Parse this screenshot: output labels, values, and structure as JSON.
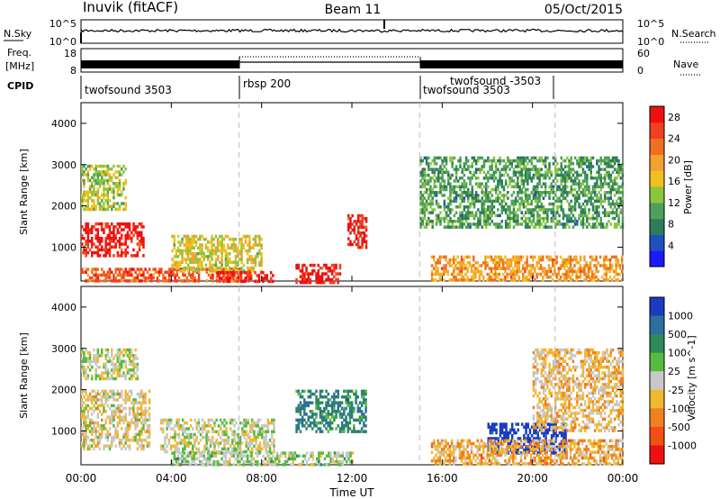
{
  "header": {
    "site": "Inuvik (fitACF)",
    "beam": "Beam 11",
    "date": "05/Oct/2015"
  },
  "left_labels": {
    "nsky": "N.Sky",
    "freq_top": "Freq.",
    "freq_unit": "[MHz]",
    "cpid": "CPID"
  },
  "right_labels": {
    "nsearch": "N.Search",
    "nave": "Nave"
  },
  "noise_axis": {
    "left_ticks": [
      "10^5",
      "10^0"
    ],
    "right_ticks": [
      "10^5",
      "10^0"
    ]
  },
  "freq_axis": {
    "left_ticks": [
      "18",
      "8"
    ],
    "right_ticks": [
      "60",
      "0"
    ]
  },
  "cpid_segments": [
    {
      "label": "twofsound 3503",
      "start_hour": 0.0,
      "end_hour": 7.0
    },
    {
      "label": "rbsp 200",
      "start_hour": 7.0,
      "end_hour": 15.0
    },
    {
      "label": "twofsound 3503",
      "start_hour": 15.0,
      "end_hour": 24.0
    },
    {
      "label": "twofsound -3503",
      "start_hour": 16.0,
      "end_hour": 21.0
    }
  ],
  "x_axis": {
    "ticks": [
      "00:00",
      "04:00",
      "08:00",
      "12:00",
      "16:00",
      "20:00",
      "00:00"
    ],
    "label": "Time UT"
  },
  "power_panel": {
    "ylabel": "Slant Range [km]",
    "yticks": [
      "1000",
      "2000",
      "3000",
      "4000"
    ],
    "colorbar_label": "Power [dB]",
    "colorbar_ticks": [
      "4",
      "8",
      "12",
      "16",
      "20",
      "24",
      "28"
    ],
    "colorbar_colors": [
      "#1a1aff",
      "#2050c0",
      "#2e7d5a",
      "#4fa05a",
      "#8cc63f",
      "#f0c020",
      "#f5a030",
      "#f07020",
      "#f04020",
      "#ee1010"
    ]
  },
  "velocity_panel": {
    "ylabel": "Slant Range [km]",
    "yticks": [
      "1000",
      "2000",
      "3000",
      "4000"
    ],
    "colorbar_label": "Velocity [m s^-1]",
    "colorbar_ticks": [
      "1000",
      "500",
      "100",
      "25",
      "-25",
      "-100",
      "-500",
      "-1000"
    ],
    "colorbar_colors": [
      "#1a3cc0",
      "#2e6ea0",
      "#2e8a5a",
      "#55bb3f",
      "#c8c8c8",
      "#f0b830",
      "#f08020",
      "#f05010",
      "#ee1010"
    ]
  },
  "chart_data": [
    {
      "type": "heatmap",
      "title": "Inuvik (fitACF) Beam 11 05/Oct/2015",
      "xlabel": "Time UT",
      "ylabel": "Slant Range [km]",
      "xlim": [
        0,
        24
      ],
      "ylim": [
        180,
        4500
      ],
      "value_label": "Power [dB]",
      "value_range": [
        0,
        30
      ],
      "series": [
        {
          "t0": 0.0,
          "t1": 2.8,
          "r0": 800,
          "r1": 1600,
          "value": 28
        },
        {
          "t0": 0.0,
          "t1": 2.0,
          "r0": 1900,
          "r1": 3000,
          "value": 14
        },
        {
          "t0": 0.0,
          "t1": 7.5,
          "r0": 180,
          "r1": 500,
          "value": 24
        },
        {
          "t0": 4.0,
          "t1": 8.0,
          "r0": 450,
          "r1": 1300,
          "value": 16
        },
        {
          "t0": 6.0,
          "t1": 8.5,
          "r0": 180,
          "r1": 420,
          "value": 28
        },
        {
          "t0": 9.5,
          "t1": 11.5,
          "r0": 180,
          "r1": 600,
          "value": 28
        },
        {
          "t0": 11.8,
          "t1": 12.6,
          "r0": 1000,
          "r1": 1800,
          "value": 28
        },
        {
          "t0": 15.5,
          "t1": 24.0,
          "r0": 180,
          "r1": 800,
          "value": 20
        },
        {
          "t0": 15.0,
          "t1": 24.0,
          "r0": 1500,
          "r1": 3200,
          "value": 10
        }
      ]
    },
    {
      "type": "heatmap",
      "xlabel": "Time UT",
      "ylabel": "Slant Range [km]",
      "xlim": [
        0,
        24
      ],
      "ylim": [
        180,
        4500
      ],
      "value_label": "Velocity [m s^-1]",
      "value_range": [
        -1000,
        1000
      ],
      "series": [
        {
          "t0": 0.0,
          "t1": 2.5,
          "r0": 2300,
          "r1": 3000,
          "value": 0
        },
        {
          "t0": 0.0,
          "t1": 3.0,
          "r0": 600,
          "r1": 2000,
          "value": -100
        },
        {
          "t0": 3.5,
          "t1": 8.5,
          "r0": 500,
          "r1": 1300,
          "value": 0
        },
        {
          "t0": 4.0,
          "t1": 12.0,
          "r0": 180,
          "r1": 500,
          "value": 100
        },
        {
          "t0": 9.5,
          "t1": 12.6,
          "r0": 1000,
          "r1": 2000,
          "value": 500
        },
        {
          "t0": 18.0,
          "t1": 21.5,
          "r0": 500,
          "r1": 1200,
          "value": 1000
        },
        {
          "t0": 15.5,
          "t1": 24.0,
          "r0": 180,
          "r1": 800,
          "value": -300
        },
        {
          "t0": 20.0,
          "t1": 24.0,
          "r0": 1000,
          "r1": 3000,
          "value": -200
        }
      ]
    }
  ]
}
